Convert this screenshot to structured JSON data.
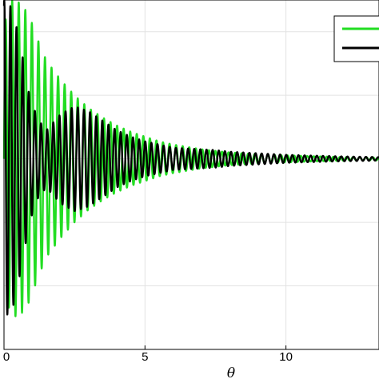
{
  "chart_data": {
    "type": "line",
    "title": "",
    "xlabel": "θ",
    "ylabel": "",
    "x_ticks": [
      {
        "value": 0,
        "label": "0"
      },
      {
        "value": 5,
        "label": "5"
      },
      {
        "value": 10,
        "label": "10"
      }
    ],
    "xlim": [
      0,
      13.3
    ],
    "ylim": [
      -1.2,
      1.0
    ],
    "grid": true,
    "legend": {
      "placement": "top-right",
      "entries_visible": 2,
      "labels_visible": false
    },
    "series": [
      {
        "color": "#22dd22",
        "x": [
          0,
          0.3,
          0.6,
          0.9,
          1.2,
          1.5,
          2,
          2.5,
          3,
          3.5,
          4,
          4.5,
          5,
          5.5,
          6,
          6.5,
          7,
          7.5,
          8,
          9,
          10,
          11,
          12,
          13,
          13.3
        ],
        "envelope": [
          0.85,
          1.0,
          0.98,
          0.9,
          0.75,
          0.62,
          0.5,
          0.4,
          0.32,
          0.26,
          0.21,
          0.17,
          0.14,
          0.11,
          0.09,
          0.075,
          0.06,
          0.05,
          0.04,
          0.03,
          0.022,
          0.016,
          0.012,
          0.01,
          0.01
        ],
        "cycles_per_unit": 4.3
      },
      {
        "color": "#000000",
        "x": [
          0,
          0.3,
          0.6,
          0.9,
          1.2,
          1.5,
          2,
          2.5,
          3,
          3.5,
          4,
          4.5,
          5,
          5.5,
          6,
          6.5,
          7,
          7.5,
          8,
          9,
          10,
          11,
          12,
          13,
          13.3
        ],
        "envelope": [
          1.0,
          0.95,
          0.7,
          0.4,
          0.25,
          0.18,
          0.28,
          0.33,
          0.3,
          0.24,
          0.18,
          0.14,
          0.11,
          0.09,
          0.07,
          0.065,
          0.06,
          0.055,
          0.045,
          0.035,
          0.025,
          0.02,
          0.015,
          0.012,
          0.01
        ],
        "cycles_per_unit": 4.6
      }
    ]
  }
}
